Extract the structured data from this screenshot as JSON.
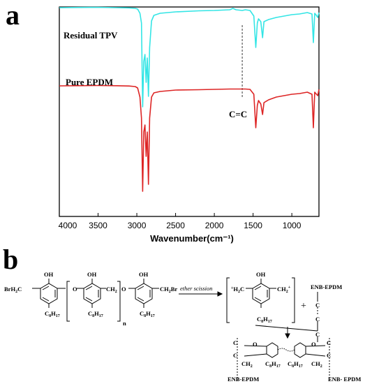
{
  "panel_a": {
    "letter": "a"
  },
  "panel_b": {
    "letter": "b",
    "reaction_label": "ether scission",
    "plus": "+",
    "n_subscript": "n",
    "groups": {
      "brh2c": "BrH",
      "ch2br": "CH",
      "oh": "OH",
      "o": "O",
      "c8h17": "C",
      "h2c_cation": "H",
      "enb_epdm": "ENB-EPDM",
      "enb_epdm_2": "ENB- EPDM",
      "c": "C"
    }
  },
  "chart_data": {
    "type": "line",
    "title": "",
    "xlabel": "Wavenumber(cm⁻¹)",
    "ylabel": "",
    "xlim": [
      4000,
      650
    ],
    "x_reversed": true,
    "xticks": [
      4000,
      3500,
      3000,
      2500,
      2000,
      1500,
      1000
    ],
    "ytick_labels": false,
    "annotation": {
      "text": "C=C",
      "x": 1640,
      "style": "dashed-vertical-line"
    },
    "series": [
      {
        "name": "Residual TPV",
        "color": "#33e5e5",
        "points": [
          [
            4000,
            52
          ],
          [
            3750,
            52.3
          ],
          [
            3500,
            52.5
          ],
          [
            3250,
            52
          ],
          [
            3100,
            51.7
          ],
          [
            3020,
            51
          ],
          [
            2990,
            50
          ],
          [
            2960,
            44
          ],
          [
            2940,
            30
          ],
          [
            2925,
            -90
          ],
          [
            2910,
            -25
          ],
          [
            2895,
            -15
          ],
          [
            2880,
            -55
          ],
          [
            2865,
            -20
          ],
          [
            2850,
            -75
          ],
          [
            2835,
            -5
          ],
          [
            2810,
            33
          ],
          [
            2780,
            41
          ],
          [
            2700,
            44
          ],
          [
            2500,
            46
          ],
          [
            2200,
            47.5
          ],
          [
            2000,
            48
          ],
          [
            1800,
            49
          ],
          [
            1760,
            51
          ],
          [
            1720,
            49
          ],
          [
            1640,
            48
          ],
          [
            1600,
            49
          ],
          [
            1540,
            48
          ],
          [
            1490,
            40
          ],
          [
            1465,
            -5
          ],
          [
            1445,
            30
          ],
          [
            1430,
            36
          ],
          [
            1400,
            32
          ],
          [
            1378,
            9
          ],
          [
            1360,
            32
          ],
          [
            1300,
            35
          ],
          [
            1200,
            38
          ],
          [
            1100,
            40
          ],
          [
            1000,
            42
          ],
          [
            900,
            43
          ],
          [
            800,
            45
          ],
          [
            740,
            43
          ],
          [
            722,
            2
          ],
          [
            705,
            44
          ],
          [
            690,
            42
          ],
          [
            665,
            38
          ],
          [
            650,
            45
          ]
        ]
      },
      {
        "name": "Pure EPDM",
        "color": "#dd2525",
        "points": [
          [
            4000,
            6
          ],
          [
            3700,
            6.3
          ],
          [
            3500,
            6.5
          ],
          [
            3250,
            6.2
          ],
          [
            3100,
            5.8
          ],
          [
            3020,
            5
          ],
          [
            2990,
            3
          ],
          [
            2960,
            -10
          ],
          [
            2940,
            -40
          ],
          [
            2925,
            -145
          ],
          [
            2910,
            -60
          ],
          [
            2895,
            -50
          ],
          [
            2880,
            -95
          ],
          [
            2865,
            -60
          ],
          [
            2850,
            -135
          ],
          [
            2835,
            -40
          ],
          [
            2810,
            -10
          ],
          [
            2780,
            -4
          ],
          [
            2700,
            -2
          ],
          [
            2500,
            0
          ],
          [
            2200,
            0.5
          ],
          [
            2000,
            1
          ],
          [
            1800,
            1.5
          ],
          [
            1700,
            1.5
          ],
          [
            1600,
            1.5
          ],
          [
            1540,
            1
          ],
          [
            1490,
            -6
          ],
          [
            1465,
            -54
          ],
          [
            1445,
            -22
          ],
          [
            1430,
            -15
          ],
          [
            1400,
            -20
          ],
          [
            1378,
            -35
          ],
          [
            1360,
            -18
          ],
          [
            1300,
            -14
          ],
          [
            1200,
            -10
          ],
          [
            1100,
            -8
          ],
          [
            1000,
            -6
          ],
          [
            900,
            -5
          ],
          [
            800,
            -3
          ],
          [
            740,
            -6
          ],
          [
            722,
            -54
          ],
          [
            705,
            -3
          ],
          [
            690,
            -5
          ],
          [
            665,
            -8
          ],
          [
            650,
            1
          ]
        ]
      }
    ],
    "legend": [
      {
        "text": "Residual TPV",
        "placement": "above left of cyan trace"
      },
      {
        "text": "Pure EPDM",
        "placement": "above left of red trace"
      }
    ]
  }
}
